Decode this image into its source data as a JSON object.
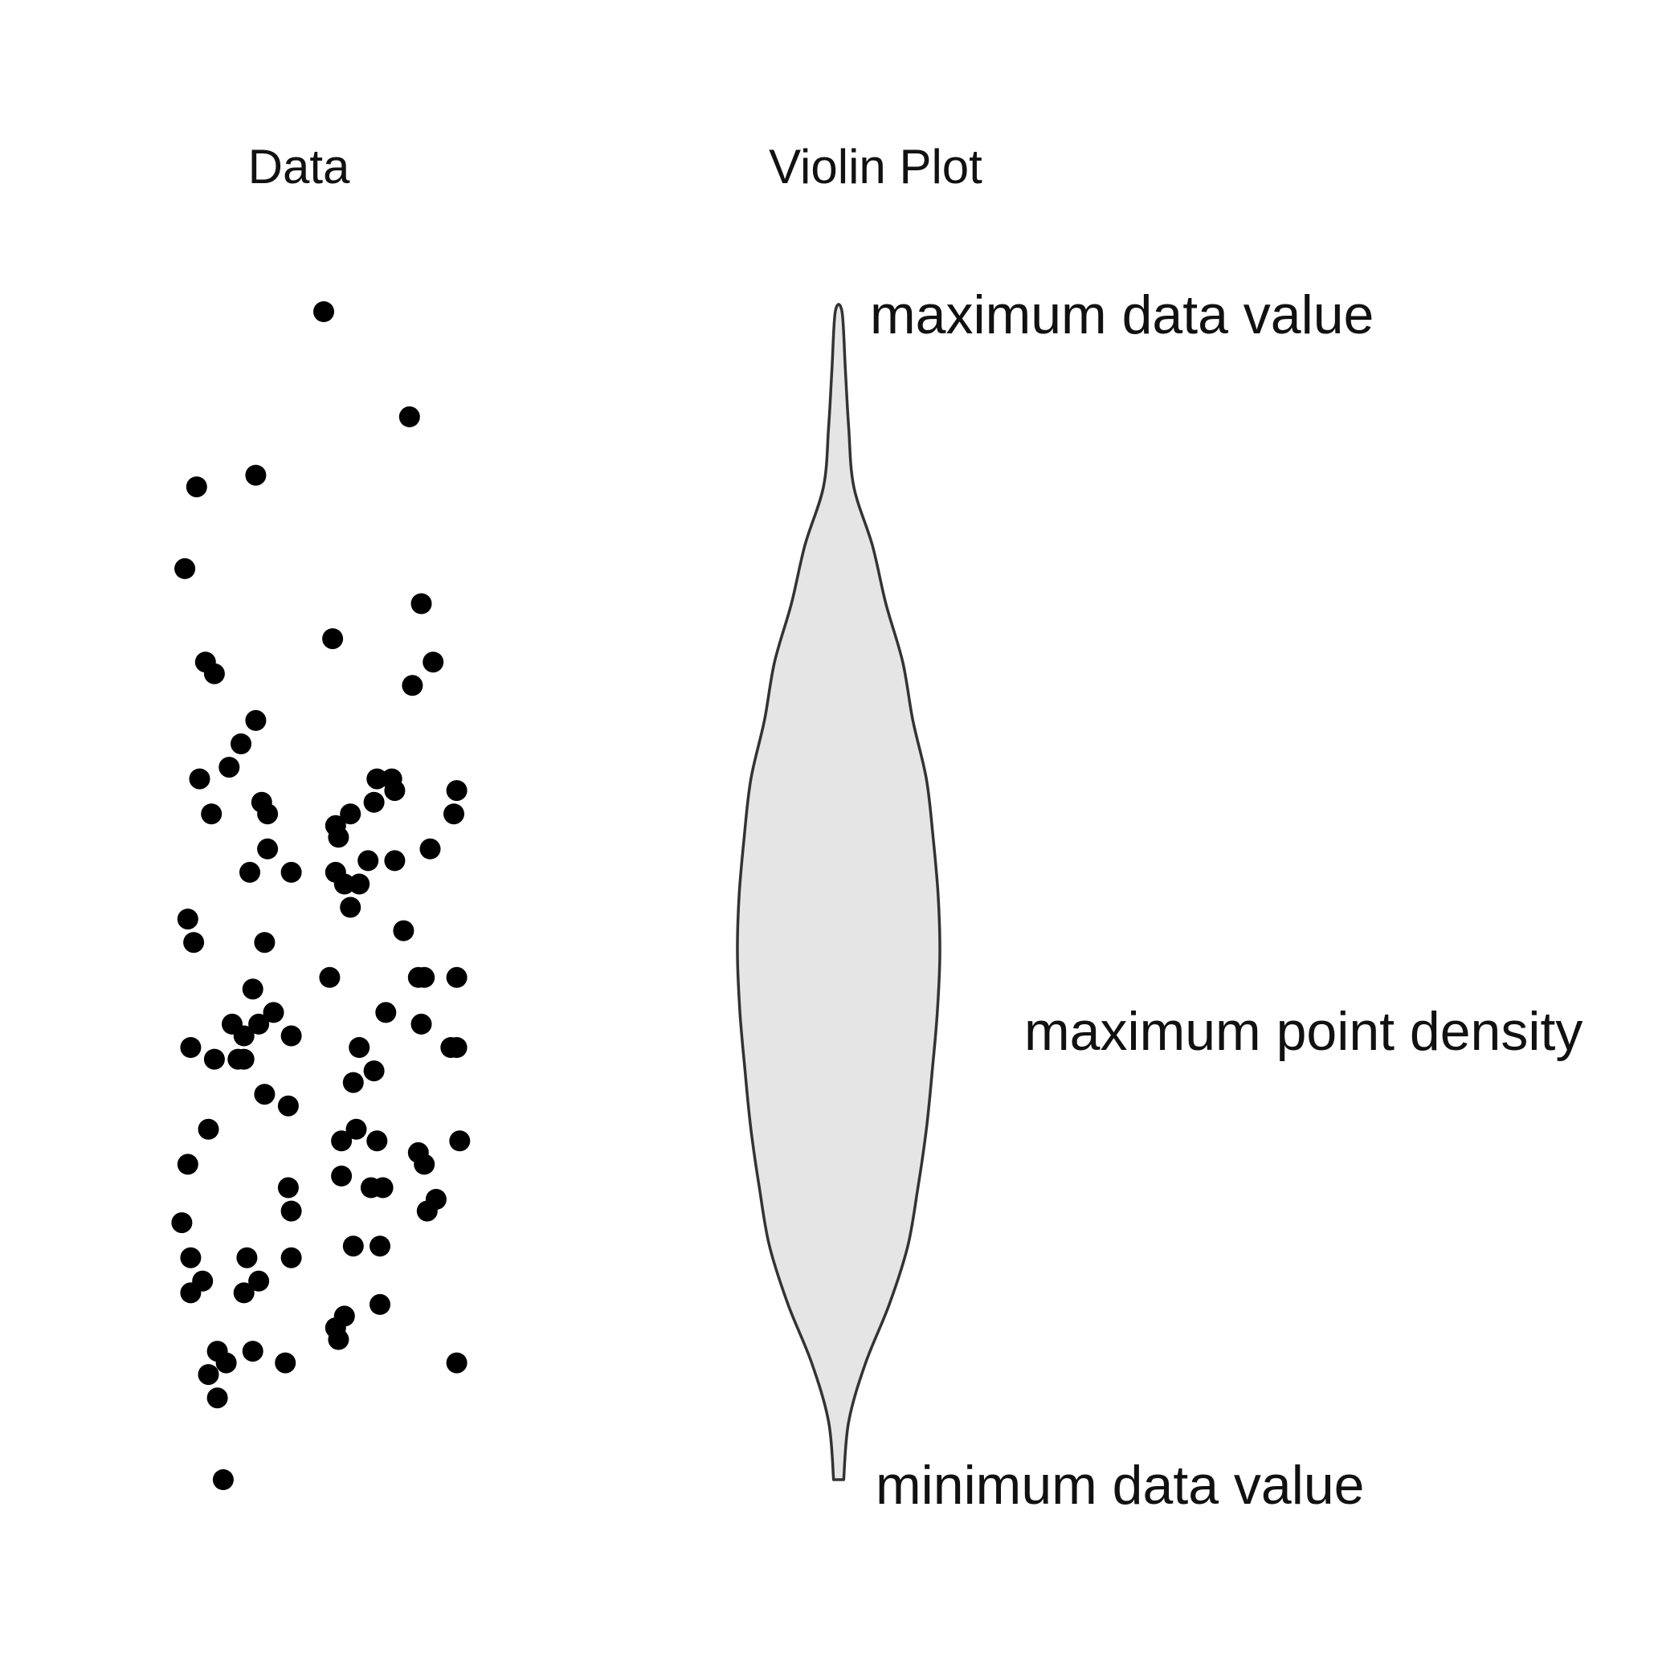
{
  "chart_data": {
    "type": "scatter",
    "panels": {
      "data_title": "Data",
      "violin_title": "Violin Plot"
    },
    "annotations": {
      "max": "maximum data value",
      "density": "maximum point density",
      "min": "minimum data value"
    },
    "style": {
      "point_color": "#000000",
      "violin_fill": "#e5e5e5",
      "violin_stroke": "#333333"
    },
    "points": [
      [
        0.53,
        1.0
      ],
      [
        0.82,
        0.91
      ],
      [
        0.3,
        0.86
      ],
      [
        0.1,
        0.85
      ],
      [
        0.06,
        0.78
      ],
      [
        0.86,
        0.75
      ],
      [
        0.56,
        0.72
      ],
      [
        0.9,
        0.7
      ],
      [
        0.13,
        0.7
      ],
      [
        0.16,
        0.69
      ],
      [
        0.83,
        0.68
      ],
      [
        0.3,
        0.65
      ],
      [
        0.25,
        0.63
      ],
      [
        0.11,
        0.6
      ],
      [
        0.21,
        0.61
      ],
      [
        0.76,
        0.6
      ],
      [
        0.71,
        0.6
      ],
      [
        0.77,
        0.59
      ],
      [
        0.98,
        0.59
      ],
      [
        0.32,
        0.58
      ],
      [
        0.34,
        0.57
      ],
      [
        0.7,
        0.58
      ],
      [
        0.62,
        0.57
      ],
      [
        0.15,
        0.57
      ],
      [
        0.97,
        0.57
      ],
      [
        0.58,
        0.55
      ],
      [
        0.57,
        0.56
      ],
      [
        0.34,
        0.54
      ],
      [
        0.89,
        0.54
      ],
      [
        0.68,
        0.53
      ],
      [
        0.77,
        0.53
      ],
      [
        0.28,
        0.52
      ],
      [
        0.42,
        0.52
      ],
      [
        0.57,
        0.52
      ],
      [
        0.6,
        0.51
      ],
      [
        0.65,
        0.51
      ],
      [
        0.07,
        0.48
      ],
      [
        0.09,
        0.46
      ],
      [
        0.62,
        0.49
      ],
      [
        0.33,
        0.46
      ],
      [
        0.8,
        0.47
      ],
      [
        0.55,
        0.43
      ],
      [
        0.85,
        0.43
      ],
      [
        0.87,
        0.43
      ],
      [
        0.98,
        0.43
      ],
      [
        0.29,
        0.42
      ],
      [
        0.36,
        0.4
      ],
      [
        0.74,
        0.4
      ],
      [
        0.22,
        0.39
      ],
      [
        0.31,
        0.39
      ],
      [
        0.26,
        0.38
      ],
      [
        0.42,
        0.38
      ],
      [
        0.86,
        0.39
      ],
      [
        0.96,
        0.37
      ],
      [
        0.98,
        0.37
      ],
      [
        0.08,
        0.37
      ],
      [
        0.26,
        0.36
      ],
      [
        0.65,
        0.37
      ],
      [
        0.16,
        0.36
      ],
      [
        0.24,
        0.36
      ],
      [
        0.63,
        0.34
      ],
      [
        0.33,
        0.33
      ],
      [
        0.41,
        0.32
      ],
      [
        0.7,
        0.35
      ],
      [
        0.64,
        0.3
      ],
      [
        0.59,
        0.29
      ],
      [
        0.14,
        0.3
      ],
      [
        0.71,
        0.29
      ],
      [
        0.85,
        0.28
      ],
      [
        0.99,
        0.29
      ],
      [
        0.07,
        0.27
      ],
      [
        0.87,
        0.27
      ],
      [
        0.59,
        0.26
      ],
      [
        0.69,
        0.25
      ],
      [
        0.73,
        0.25
      ],
      [
        0.41,
        0.25
      ],
      [
        0.42,
        0.23
      ],
      [
        0.91,
        0.24
      ],
      [
        0.88,
        0.23
      ],
      [
        0.05,
        0.22
      ],
      [
        0.72,
        0.2
      ],
      [
        0.63,
        0.2
      ],
      [
        0.42,
        0.19
      ],
      [
        0.27,
        0.19
      ],
      [
        0.08,
        0.19
      ],
      [
        0.31,
        0.17
      ],
      [
        0.12,
        0.17
      ],
      [
        0.08,
        0.16
      ],
      [
        0.26,
        0.16
      ],
      [
        0.72,
        0.15
      ],
      [
        0.6,
        0.14
      ],
      [
        0.57,
        0.13
      ],
      [
        0.58,
        0.12
      ],
      [
        0.17,
        0.11
      ],
      [
        0.29,
        0.11
      ],
      [
        0.2,
        0.1
      ],
      [
        0.4,
        0.1
      ],
      [
        0.98,
        0.1
      ],
      [
        0.14,
        0.09
      ],
      [
        0.17,
        0.07
      ],
      [
        0.19,
        0.0
      ]
    ],
    "violin_density": [
      [
        0.0,
        0.03
      ],
      [
        0.05,
        0.06
      ],
      [
        0.1,
        0.16
      ],
      [
        0.15,
        0.3
      ],
      [
        0.2,
        0.41
      ],
      [
        0.25,
        0.47
      ],
      [
        0.3,
        0.52
      ],
      [
        0.35,
        0.555
      ],
      [
        0.4,
        0.585
      ],
      [
        0.45,
        0.6
      ],
      [
        0.5,
        0.59
      ],
      [
        0.55,
        0.56
      ],
      [
        0.6,
        0.52
      ],
      [
        0.65,
        0.44
      ],
      [
        0.7,
        0.38
      ],
      [
        0.75,
        0.28
      ],
      [
        0.8,
        0.2
      ],
      [
        0.85,
        0.09
      ],
      [
        0.9,
        0.06
      ],
      [
        0.95,
        0.04
      ],
      [
        1.0,
        0.02
      ]
    ]
  }
}
